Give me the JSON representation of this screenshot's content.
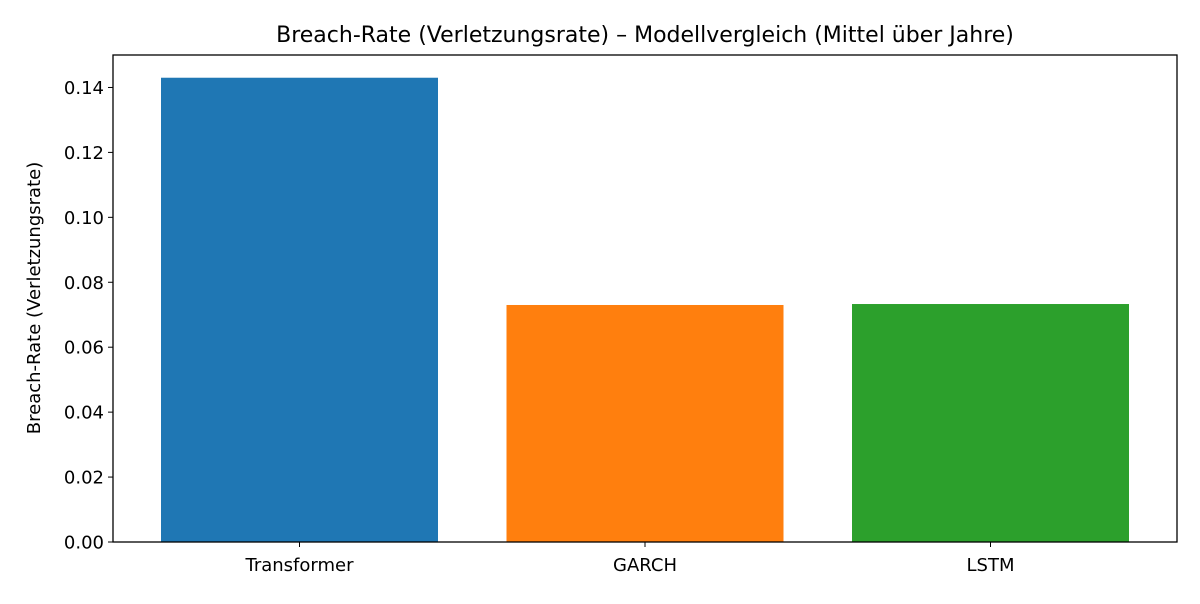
{
  "chart_data": {
    "type": "bar",
    "title": "Breach-Rate (Verletzungsrate) – Modellvergleich (Mittel über Jahre)",
    "xlabel": "",
    "ylabel": "Breach-Rate (Verletzungsrate)",
    "categories": [
      "Transformer",
      "GARCH",
      "LSTM"
    ],
    "values": [
      0.143,
      0.073,
      0.0733
    ],
    "colors": [
      "#1f77b4",
      "#ff7f0e",
      "#2ca02c"
    ],
    "ylim": [
      0,
      0.15
    ],
    "yticks": [
      "0.00",
      "0.02",
      "0.04",
      "0.06",
      "0.08",
      "0.10",
      "0.12",
      "0.14"
    ],
    "grid": false,
    "legend": "none"
  }
}
